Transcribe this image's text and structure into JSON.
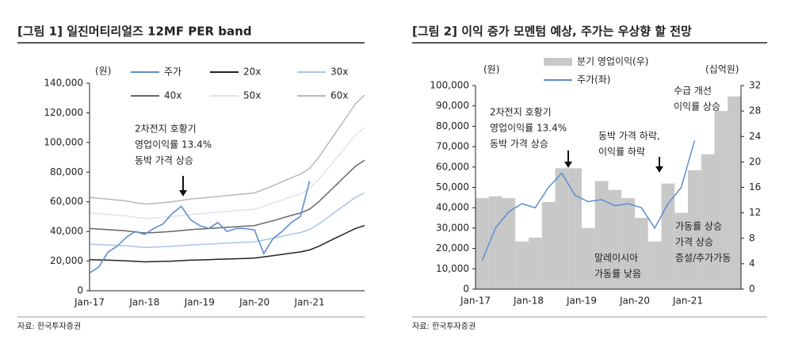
{
  "chart_data": [
    {
      "type": "line",
      "title": "[그림 1] 일진머티리얼즈 12MF PER band",
      "y_unit": "(원)",
      "source": "자료: 한국투자증권",
      "categories": [
        "Jan-17",
        null,
        null,
        null,
        null,
        null,
        "Jan-18",
        null,
        null,
        null,
        null,
        null,
        "Jan-19",
        null,
        null,
        null,
        null,
        null,
        "Jan-20",
        null,
        null,
        null,
        null,
        null,
        "Jan-21",
        null,
        null,
        null,
        null,
        null,
        null
      ],
      "ylim": [
        0,
        140000
      ],
      "yticks": [
        0,
        {
          "value": 20000,
          "label": "20,000"
        },
        {
          "value": 40000,
          "label": "40,000"
        },
        {
          "value": 60000,
          "label": "60,000"
        },
        {
          "value": 80000,
          "label": "80,000"
        },
        {
          "value": 100000,
          "label": "100,000"
        },
        {
          "value": 120000,
          "label": "120,000"
        },
        {
          "value": 140000,
          "label": "140,000"
        }
      ],
      "series": [
        {
          "name": "주가",
          "color": "#5b8fd0",
          "values": [
            12000,
            16000,
            26000,
            30000,
            36000,
            40000,
            38000,
            42000,
            45000,
            52000,
            57000,
            48000,
            44000,
            42000,
            46000,
            40000,
            42000,
            42000,
            41000,
            25000,
            35000,
            40000,
            46000,
            50000,
            74000,
            null,
            null,
            null,
            null,
            null,
            null
          ]
        },
        {
          "name": "20x",
          "color": "#222222",
          "values": [
            21000,
            20800,
            20600,
            20400,
            20200,
            19800,
            19500,
            19600,
            19800,
            20000,
            20300,
            20600,
            20800,
            21000,
            21200,
            21400,
            21600,
            21800,
            22000,
            22800,
            23600,
            24500,
            25400,
            26200,
            27500,
            30000,
            33000,
            36000,
            39000,
            42000,
            44000
          ]
        },
        {
          "name": "30x",
          "color": "#a9c4e8",
          "values": [
            31500,
            31200,
            30900,
            30600,
            30300,
            29700,
            29250,
            29400,
            29700,
            30000,
            30450,
            30900,
            31200,
            31500,
            31800,
            32100,
            32400,
            32700,
            33000,
            34200,
            35400,
            36750,
            38100,
            39300,
            41250,
            45000,
            49500,
            54000,
            58500,
            63000,
            66000
          ]
        },
        {
          "name": "40x",
          "color": "#666666",
          "values": [
            42000,
            41600,
            41200,
            40800,
            40400,
            39600,
            39000,
            39200,
            39600,
            40000,
            40600,
            41200,
            41600,
            42000,
            42400,
            42800,
            43200,
            43600,
            44000,
            45600,
            47200,
            49000,
            50800,
            52400,
            55000,
            60000,
            66000,
            72000,
            78000,
            84000,
            88000
          ]
        },
        {
          "name": "50x",
          "color": "#dde3f0",
          "values": [
            52500,
            52000,
            51500,
            51000,
            50500,
            49500,
            48750,
            49000,
            49500,
            50000,
            50750,
            51500,
            52000,
            52500,
            53000,
            53500,
            54000,
            54500,
            55000,
            57000,
            59000,
            61250,
            63500,
            65500,
            68750,
            75000,
            82500,
            90000,
            97500,
            105000,
            110000
          ]
        },
        {
          "name": "60x",
          "color": "#b8b8b8",
          "values": [
            63000,
            62400,
            61800,
            61200,
            60600,
            59400,
            58500,
            58800,
            59400,
            60000,
            60900,
            61800,
            62400,
            63000,
            63600,
            64200,
            64800,
            65400,
            66000,
            68400,
            70800,
            73500,
            76200,
            78600,
            82500,
            90000,
            99000,
            108000,
            117000,
            126000,
            132000
          ]
        }
      ],
      "annotations": [
        [
          "2차전지 호황기",
          "영업이익률 13.4%",
          "동박 가격 상승"
        ]
      ]
    },
    {
      "type": "combo",
      "title": "[그림 2] 이익 증가 모멘텀 예상, 주가는 우상향 할 전망",
      "y_unit": "(원)",
      "y2_unit": "(십억원)",
      "source": "자료: 한국투자증권",
      "categories": [
        "Jan-17",
        null,
        null,
        null,
        "Jan-18",
        null,
        null,
        null,
        "Jan-19",
        null,
        null,
        null,
        "Jan-20",
        null,
        null,
        null,
        "Jan-21",
        null,
        null,
        null
      ],
      "ylim": [
        0,
        100000
      ],
      "yticks": [
        0,
        {
          "value": 10000,
          "label": "10,000"
        },
        {
          "value": 20000,
          "label": "20,000"
        },
        {
          "value": 30000,
          "label": "30,000"
        },
        {
          "value": 40000,
          "label": "40,000"
        },
        {
          "value": 50000,
          "label": "50,000"
        },
        {
          "value": 60000,
          "label": "60,000"
        },
        {
          "value": 70000,
          "label": "70,000"
        },
        {
          "value": 80000,
          "label": "80,000"
        },
        {
          "value": 90000,
          "label": "90,000"
        },
        {
          "value": 100000,
          "label": "100,000"
        }
      ],
      "y2lim": [
        0,
        32
      ],
      "y2ticks": [
        0,
        4,
        8,
        12,
        16,
        20,
        24,
        28,
        32
      ],
      "series": [
        {
          "name": "분기 영업이익(우)",
          "type": "bar",
          "axis": "y2",
          "color": "#c8c8c8",
          "values": [
            14.3,
            14.6,
            14.3,
            7.5,
            8.1,
            13.7,
            19,
            19,
            9.6,
            17,
            15.6,
            14.3,
            11.2,
            7.5,
            16.6,
            12,
            18.7,
            21.2,
            28,
            30.3
          ]
        },
        {
          "name": "주가(좌)",
          "type": "line",
          "color": "#5b8fd0",
          "values": [
            14000,
            30000,
            38000,
            42000,
            40000,
            50000,
            57000,
            46000,
            43000,
            44000,
            41000,
            42000,
            40000,
            30000,
            42000,
            50000,
            73000,
            null,
            null,
            null
          ]
        }
      ],
      "annotations": [
        [
          "2차전지 호황기",
          "영업이익률 13.4%",
          "동박 가격 상승"
        ],
        [
          "동박 가격 하락,",
          "이익률 하락"
        ],
        [
          "수급 개선",
          "이익률 상승"
        ],
        [
          "말레이시아",
          "가동률 낮음"
        ],
        [
          "가동률 상승",
          "가격 상승",
          "증설/추가가동"
        ]
      ]
    }
  ]
}
